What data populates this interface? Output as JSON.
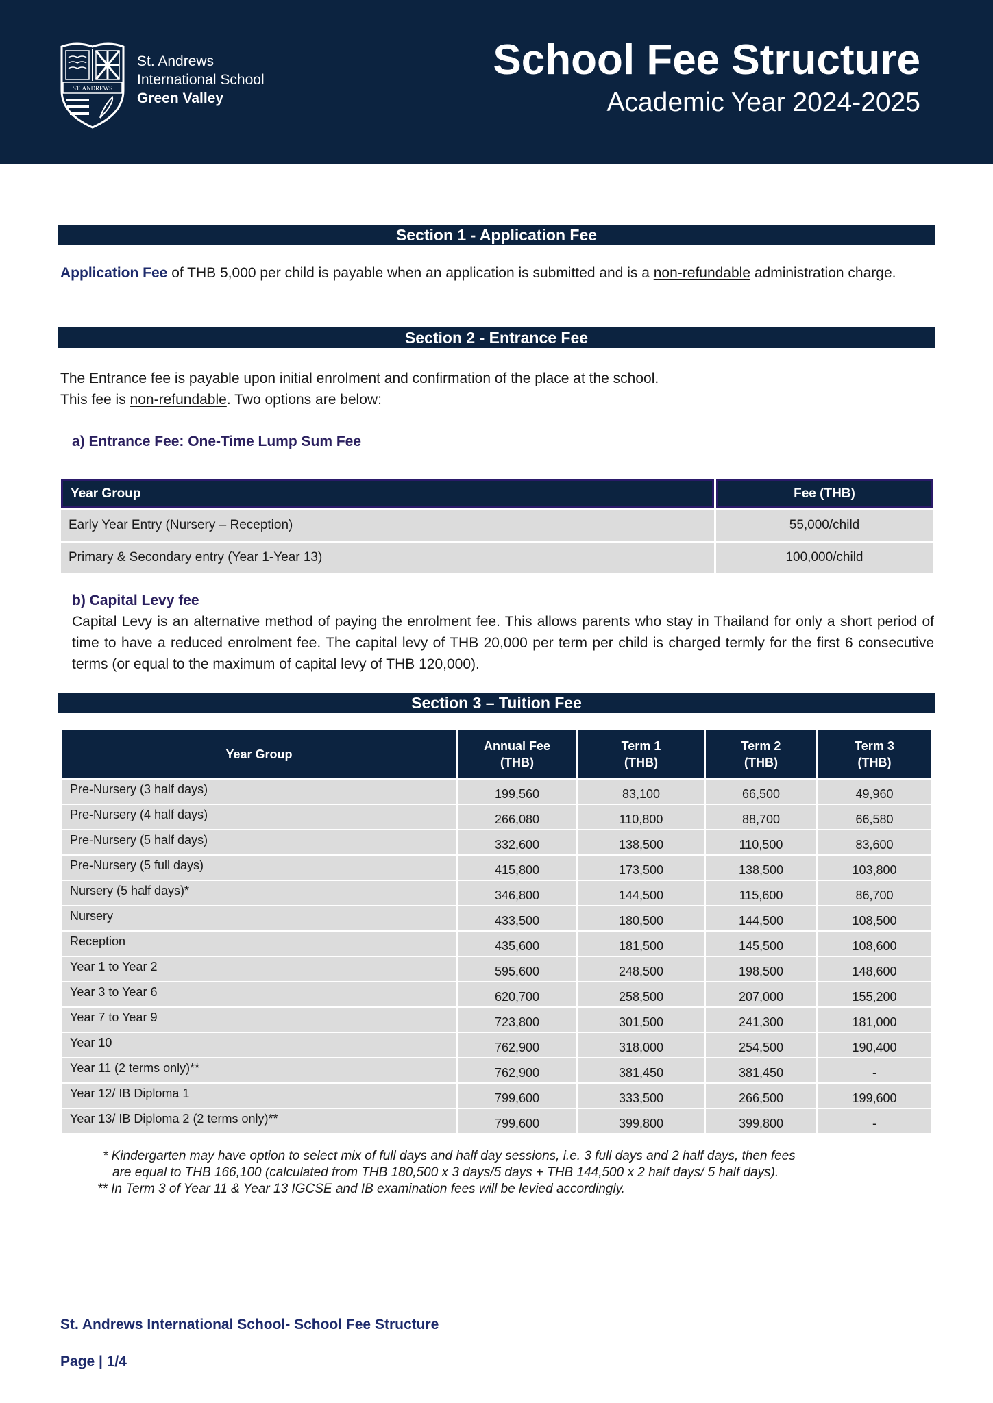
{
  "header": {
    "logo_text": "ST. ANDREWS",
    "school_line1": "St. Andrews",
    "school_line2": "International School",
    "school_line3": "Green Valley",
    "title": "School Fee Structure",
    "subtitle": "Academic Year 2024-2025",
    "bg_color": "#0c2340"
  },
  "section1": {
    "title": "Section 1 - Application Fee",
    "lead": "Application Fee",
    "text1": " of THB 5,000 per child is payable when an application is submitted and is a ",
    "underlined": "non-refundable",
    "text2": " administration charge."
  },
  "section2": {
    "title": "Section 2 - Entrance Fee",
    "line1": "The Entrance fee is payable upon initial enrolment and confirmation of the place at the school.",
    "line2a": "This fee is ",
    "line2u": "non-refundable",
    "line2b": ". Two options are below:",
    "sub_a": "a)  Entrance Fee: One-Time Lump Sum Fee",
    "table": {
      "headers": [
        "Year Group",
        "Fee (THB)"
      ],
      "rows": [
        [
          "Early Year Entry (Nursery – Reception)",
          "55,000/child"
        ],
        [
          "Primary & Secondary entry (Year 1-Year 13)",
          "100,000/child"
        ]
      ]
    },
    "sub_b": "b) Capital Levy fee",
    "levy_text": "Capital Levy is an alternative method of paying the enrolment fee. This allows parents who stay in Thailand for only a short period of time to have a reduced enrolment fee. The capital levy of THB 20,000 per term per child is charged termly for the first 6 consecutive terms (or equal to the maximum of capital levy of THB 120,000)."
  },
  "section3": {
    "title": "Section 3 – Tuition Fee",
    "headers": [
      "Year Group",
      "Annual Fee\n(THB)",
      "Term 1\n(THB)",
      "Term 2\n(THB)",
      "Term 3\n(THB)"
    ],
    "rows": [
      [
        "Pre-Nursery (3 half days)",
        "199,560",
        "83,100",
        "66,500",
        "49,960"
      ],
      [
        "Pre-Nursery (4 half days)",
        "266,080",
        "110,800",
        "88,700",
        "66,580"
      ],
      [
        "Pre-Nursery (5 half days)",
        "332,600",
        "138,500",
        "110,500",
        "83,600"
      ],
      [
        "Pre-Nursery (5 full days)",
        "415,800",
        "173,500",
        "138,500",
        "103,800"
      ],
      [
        "Nursery (5 half days)*",
        "346,800",
        "144,500",
        "115,600",
        "86,700"
      ],
      [
        "Nursery",
        "433,500",
        "180,500",
        "144,500",
        "108,500"
      ],
      [
        "Reception",
        "435,600",
        "181,500",
        "145,500",
        "108,600"
      ],
      [
        "Year 1 to Year 2",
        "595,600",
        "248,500",
        "198,500",
        "148,600"
      ],
      [
        "Year 3 to Year 6",
        "620,700",
        "258,500",
        "207,000",
        "155,200"
      ],
      [
        "Year 7 to Year 9",
        "723,800",
        "301,500",
        "241,300",
        "181,000"
      ],
      [
        "Year 10",
        "762,900",
        "318,000",
        "254,500",
        "190,400"
      ],
      [
        "Year 11 (2 terms only)**",
        "762,900",
        "381,450",
        "381,450",
        "-"
      ],
      [
        "Year 12/ IB Diploma 1",
        "799,600",
        "333,500",
        "266,500",
        "199,600"
      ],
      [
        "Year 13/ IB Diploma 2 (2 terms only)**",
        "799,600",
        "399,800",
        "399,800",
        "-"
      ]
    ],
    "note1a": "* Kindergarten may have option to select mix of full days and half day sessions, i.e. 3 full days and 2 half days, then fees",
    "note1b": "are equal to THB 166,100 (calculated from THB 180,500 x 3 days/5 days + THB 144,500 x 2 half days/ 5 half days).",
    "note2": "** In Term 3 of Year 11 & Year 13 IGCSE and IB examination fees will be levied accordingly."
  },
  "footer": {
    "doc_title": "St. Andrews International School- School Fee Structure",
    "page": "Page | 1/4"
  }
}
